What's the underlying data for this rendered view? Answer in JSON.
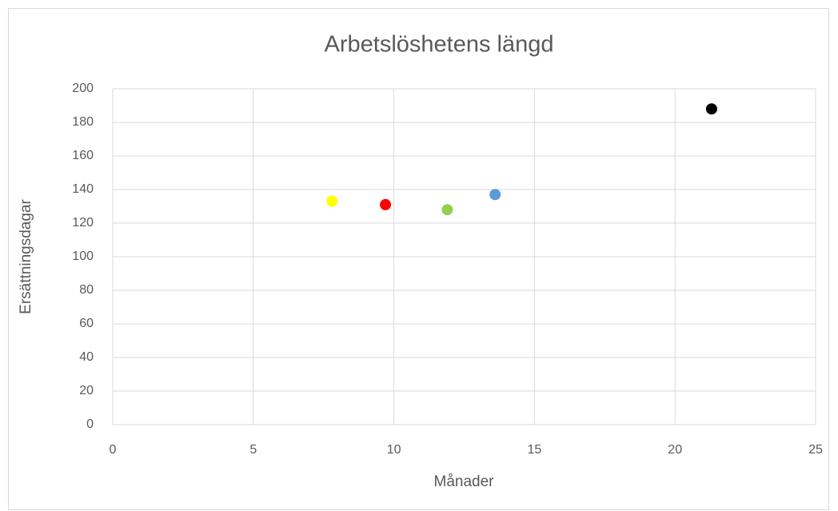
{
  "chart_data": {
    "type": "scatter",
    "title": "Arbetslöshetens längd",
    "x_label": "Månader",
    "y_label": "Ersättningsdagar",
    "x": [
      7.8,
      9.7,
      11.9,
      13.6,
      21.3
    ],
    "values": [
      133,
      131,
      128,
      137,
      188
    ],
    "colors": [
      "#ffff00",
      "#ff0000",
      "#92d050",
      "#5b9bd5",
      "#000000"
    ],
    "xlim": [
      0,
      25
    ],
    "xticks": [
      0,
      5,
      10,
      15,
      20,
      25
    ],
    "ylim": [
      0,
      200
    ],
    "yticks": [
      0,
      20,
      40,
      60,
      80,
      100,
      120,
      140,
      160,
      180,
      200
    ],
    "grid": true
  }
}
